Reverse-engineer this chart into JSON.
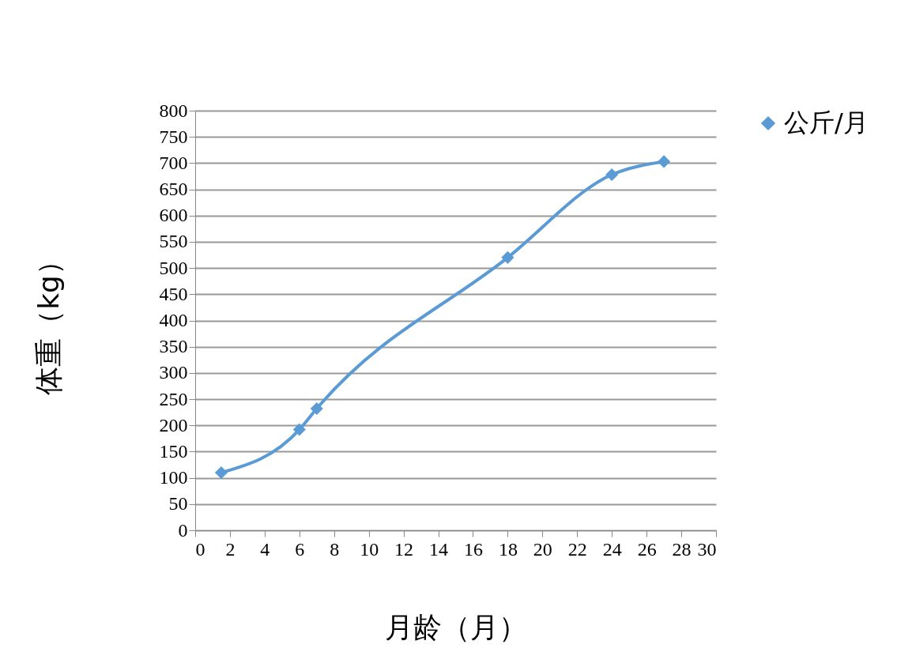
{
  "chart_data": {
    "type": "line",
    "xlabel": "月龄（月）",
    "ylabel": "体重（kg）",
    "x": [
      1.5,
      6,
      7,
      18,
      24,
      27
    ],
    "series": [
      {
        "name": "公斤/月",
        "color": "#5b9bd5",
        "values": [
          110,
          192,
          232,
          520,
          678,
          703
        ]
      }
    ],
    "xlim": [
      0,
      30
    ],
    "xticks": [
      0,
      2,
      4,
      6,
      8,
      10,
      12,
      14,
      16,
      18,
      20,
      22,
      24,
      26,
      28,
      30
    ],
    "ylim": [
      0,
      800
    ],
    "yticks": [
      0,
      50,
      100,
      150,
      200,
      250,
      300,
      350,
      400,
      450,
      500,
      550,
      600,
      650,
      700,
      750,
      800
    ],
    "grid": "y",
    "legend": "right",
    "marker": "diamond",
    "line_style": "solid"
  }
}
